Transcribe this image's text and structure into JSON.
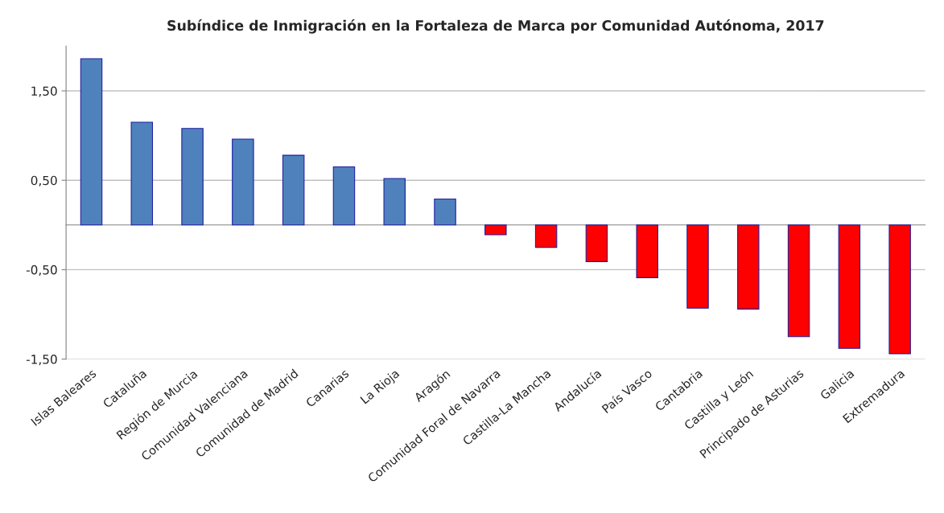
{
  "chart_data": {
    "type": "bar",
    "title": "Subíndice de Inmigración en la Fortaleza de Marca por Comunidad Autónoma, 2017",
    "categories": [
      "Islas Baleares",
      "Cataluña",
      "Región de Murcia",
      "Comunidad Valenciana",
      "Comunidad de Madrid",
      "Canarias",
      "La Rioja",
      "Aragón",
      "Comunidad Foral de Navarra",
      "Castilla-La Mancha",
      "Andalucía",
      "País Vasco",
      "Cantabria",
      "Castilla y León",
      "Principado de Asturias",
      "Galicia",
      "Extremadura"
    ],
    "values": [
      1.86,
      1.15,
      1.08,
      0.96,
      0.78,
      0.65,
      0.52,
      0.29,
      -0.11,
      -0.25,
      -0.41,
      -0.59,
      -0.93,
      -0.94,
      -1.25,
      -1.38,
      -1.44
    ],
    "colors": [
      "#4f81bd",
      "#4f81bd",
      "#4f81bd",
      "#4f81bd",
      "#4f81bd",
      "#4f81bd",
      "#4f81bd",
      "#4f81bd",
      "#ff0000",
      "#ff0000",
      "#ff0000",
      "#ff0000",
      "#ff0000",
      "#ff0000",
      "#ff0000",
      "#ff0000",
      "#ff0000"
    ],
    "ylim": [
      -1.5,
      2.0
    ],
    "yticks": [
      {
        "value": 1.5,
        "label": "1,50"
      },
      {
        "value": 0.5,
        "label": "0,50"
      },
      {
        "value": -0.5,
        "label": "-0,50"
      },
      {
        "value": -1.5,
        "label": "-1,50"
      }
    ],
    "grid": "y"
  }
}
